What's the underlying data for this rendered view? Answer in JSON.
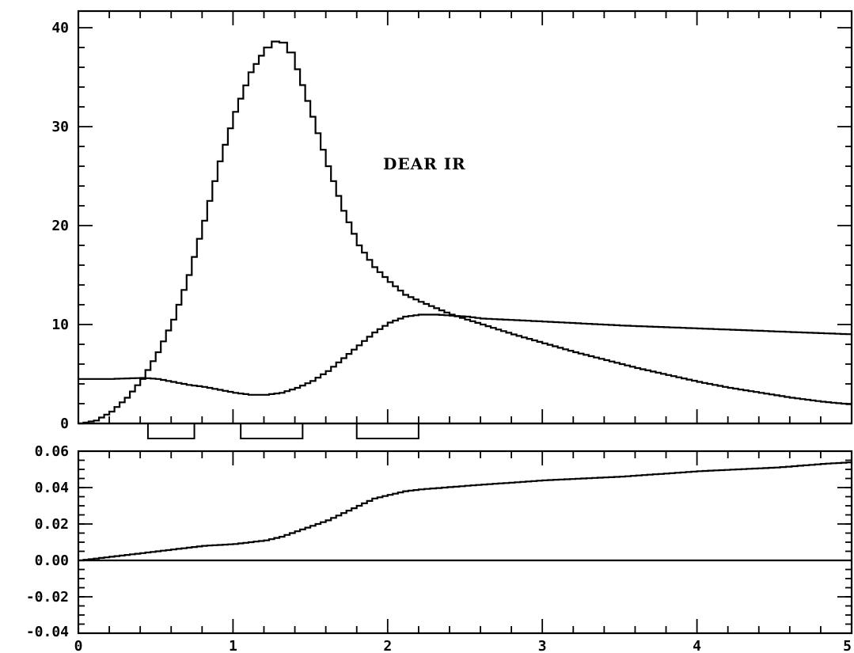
{
  "chart_data": [
    {
      "type": "line",
      "title": "",
      "xlabel": "",
      "ylabel": "",
      "xlim": [
        0,
        5
      ],
      "ylim": [
        0,
        40
      ],
      "y_ticks": [
        0,
        10,
        20,
        30,
        40
      ],
      "y_tick_labels": [
        "0",
        "10",
        "20",
        "30",
        "40"
      ],
      "annotation": "DEAR IR",
      "series": [
        {
          "x": [
            0,
            0.1,
            0.2,
            0.3,
            0.4,
            0.5,
            0.6,
            0.7,
            0.8,
            0.9,
            1.0,
            1.1,
            1.2,
            1.25,
            1.3,
            1.35,
            1.4,
            1.5,
            1.6,
            1.7,
            1.8,
            1.9,
            2.0,
            2.1,
            2.2,
            2.4,
            2.6,
            2.8,
            3.0,
            3.2,
            3.4,
            3.6,
            3.8,
            4.0,
            4.2,
            4.4,
            4.6,
            4.8,
            5.0
          ],
          "y": [
            0,
            0.3,
            1.2,
            2.6,
            4.5,
            7.2,
            10.5,
            15.0,
            20.5,
            26.5,
            31.5,
            35.5,
            38.0,
            38.6,
            38.5,
            37.5,
            35.8,
            31.0,
            26.0,
            21.5,
            18.0,
            15.8,
            14.3,
            13.0,
            12.3,
            11.0,
            10.0,
            9.0,
            8.1,
            7.2,
            6.4,
            5.6,
            4.9,
            4.2,
            3.6,
            3.1,
            2.6,
            2.2,
            1.9
          ]
        },
        {
          "x": [
            0,
            0.2,
            0.4,
            0.5,
            0.6,
            0.7,
            0.8,
            0.9,
            1.0,
            1.1,
            1.2,
            1.3,
            1.4,
            1.5,
            1.6,
            1.7,
            1.8,
            1.9,
            2.0,
            2.1,
            2.2,
            2.3,
            2.5,
            2.6,
            3.0,
            3.5,
            4.0,
            4.5,
            5.0
          ],
          "y": [
            4.5,
            4.5,
            4.6,
            4.5,
            4.2,
            3.9,
            3.7,
            3.4,
            3.1,
            2.9,
            2.9,
            3.1,
            3.6,
            4.3,
            5.3,
            6.6,
            7.9,
            9.2,
            10.2,
            10.8,
            11.0,
            11.0,
            10.8,
            10.6,
            10.3,
            9.9,
            9.6,
            9.3,
            9.0
          ]
        },
        {
          "x": [
            0,
            5
          ],
          "y": [
            0,
            0
          ]
        }
      ],
      "windows": [
        [
          0.45,
          0.75
        ],
        [
          1.05,
          1.45
        ],
        [
          1.8,
          2.2
        ]
      ]
    },
    {
      "type": "line",
      "title": "",
      "xlabel": "",
      "ylabel": "",
      "xlim": [
        0,
        5
      ],
      "ylim": [
        -0.04,
        0.06
      ],
      "x_ticks": [
        0,
        1,
        2,
        3,
        4,
        5
      ],
      "x_tick_labels": [
        "0",
        "1",
        "2",
        "3",
        "4",
        "5"
      ],
      "y_ticks": [
        -0.04,
        -0.02,
        0.0,
        0.02,
        0.04,
        0.06
      ],
      "y_tick_labels": [
        "-0.04",
        "-0.02",
        "0.00",
        "0.02",
        "0.04",
        "0.06"
      ],
      "series": [
        {
          "x": [
            0,
            0.2,
            0.4,
            0.6,
            0.8,
            1.0,
            1.2,
            1.3,
            1.4,
            1.5,
            1.6,
            1.7,
            1.8,
            1.9,
            2.0,
            2.1,
            2.2,
            2.5,
            3.0,
            3.5,
            4.0,
            4.5,
            4.8,
            5.0
          ],
          "y": [
            0,
            0.002,
            0.004,
            0.006,
            0.008,
            0.009,
            0.011,
            0.013,
            0.016,
            0.019,
            0.022,
            0.026,
            0.03,
            0.034,
            0.036,
            0.038,
            0.039,
            0.041,
            0.044,
            0.046,
            0.049,
            0.051,
            0.053,
            0.054
          ]
        },
        {
          "x": [
            0,
            5
          ],
          "y": [
            0,
            0
          ]
        }
      ]
    }
  ]
}
